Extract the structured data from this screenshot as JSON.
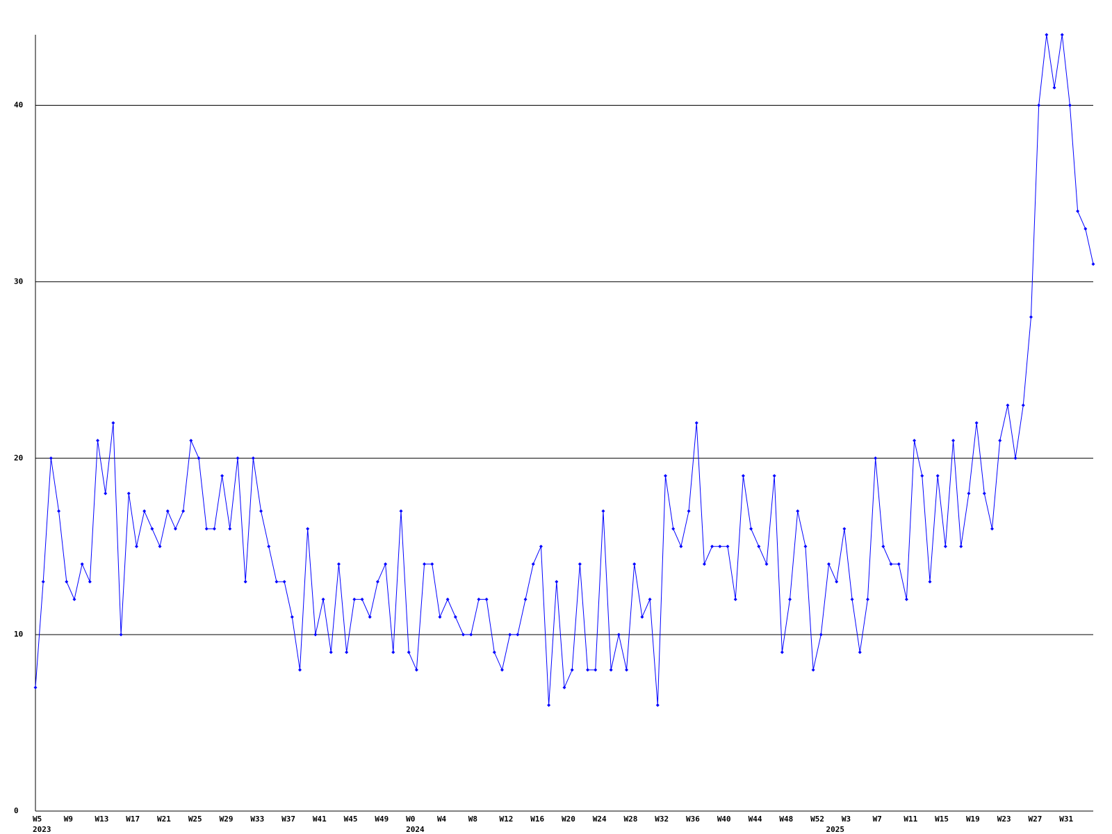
{
  "chart_data": {
    "type": "line",
    "categories": [
      "W5",
      null,
      null,
      null,
      "W9",
      null,
      null,
      null,
      "W13",
      null,
      null,
      null,
      "W17",
      null,
      null,
      null,
      "W21",
      null,
      null,
      null,
      "W25",
      null,
      null,
      null,
      "W29",
      null,
      null,
      null,
      "W33",
      null,
      null,
      null,
      "W37",
      null,
      null,
      null,
      "W41",
      null,
      null,
      null,
      "W45",
      null,
      null,
      null,
      "W49",
      null,
      null,
      null,
      "W0",
      null,
      null,
      null,
      "W4",
      null,
      null,
      null,
      "W8",
      null,
      null,
      null,
      "W12",
      null,
      null,
      null,
      "W16",
      null,
      null,
      null,
      "W20",
      null,
      null,
      null,
      "W24",
      null,
      null,
      null,
      "W28",
      null,
      null,
      null,
      "W32",
      null,
      null,
      null,
      "W36",
      null,
      null,
      null,
      "W40",
      null,
      null,
      null,
      "W44",
      null,
      null,
      null,
      "W48",
      null,
      null,
      null,
      "W52",
      null,
      null,
      null,
      "W3",
      null,
      null,
      null,
      "W7",
      null,
      null,
      null,
      "W11",
      null,
      null,
      null,
      "W15",
      null,
      null,
      null,
      "W19",
      null,
      null,
      null,
      "W23",
      null,
      null,
      null,
      "W27",
      null,
      null,
      null,
      "W31",
      null,
      null,
      null,
      null
    ],
    "years": [
      "2023",
      null,
      null,
      null,
      null,
      null,
      null,
      null,
      null,
      null,
      null,
      null,
      null,
      null,
      null,
      null,
      null,
      null,
      null,
      null,
      null,
      null,
      null,
      null,
      null,
      null,
      null,
      null,
      null,
      null,
      null,
      null,
      null,
      null,
      null,
      null,
      null,
      null,
      null,
      null,
      null,
      null,
      null,
      null,
      null,
      null,
      null,
      null,
      "2024",
      null,
      null,
      null,
      null,
      null,
      null,
      null,
      null,
      null,
      null,
      null,
      null,
      null,
      null,
      null,
      null,
      null,
      null,
      null,
      null,
      null,
      null,
      null,
      null,
      null,
      null,
      null,
      null,
      null,
      null,
      null,
      null,
      null,
      null,
      null,
      null,
      null,
      null,
      null,
      null,
      null,
      null,
      null,
      null,
      null,
      null,
      null,
      null,
      null,
      null,
      null,
      null,
      null,
      "2025",
      null,
      null,
      null,
      null,
      null,
      null,
      null,
      null,
      null,
      null,
      null,
      null,
      null,
      null,
      null,
      null,
      null,
      null,
      null,
      null,
      null,
      null,
      null,
      null,
      null,
      null,
      null,
      null,
      null,
      null,
      null,
      null,
      null,
      null,
      null
    ],
    "series": [
      {
        "color": "#0000ff",
        "values": [
          7,
          13,
          20,
          17,
          13,
          12,
          14,
          13,
          21,
          18,
          22,
          10,
          18,
          15,
          17,
          16,
          15,
          17,
          16,
          17,
          21,
          20,
          16,
          16,
          19,
          16,
          20,
          13,
          20,
          17,
          15,
          13,
          13,
          11,
          8,
          16,
          10,
          12,
          9,
          14,
          9,
          12,
          12,
          11,
          13,
          14,
          9,
          17,
          9,
          8,
          14,
          14,
          11,
          12,
          11,
          10,
          10,
          12,
          12,
          9,
          8,
          10,
          10,
          12,
          14,
          15,
          6,
          13,
          7,
          8,
          14,
          8,
          8,
          17,
          8,
          10,
          8,
          14,
          11,
          12,
          6,
          19,
          16,
          15,
          17,
          22,
          14,
          15,
          15,
          15,
          12,
          19,
          16,
          15,
          14,
          19,
          9,
          12,
          17,
          15,
          8,
          10,
          14,
          13,
          16,
          12,
          9,
          12,
          20,
          15,
          14,
          14,
          12,
          21,
          19,
          13,
          19,
          15,
          21,
          15,
          18,
          22,
          18,
          16,
          21,
          23,
          20,
          23,
          28,
          40,
          44,
          41,
          44,
          40,
          34,
          33,
          31
        ]
      }
    ],
    "ylim": [
      0,
      44
    ],
    "yticks": [
      0,
      10,
      20,
      30,
      40
    ],
    "grid": true
  }
}
